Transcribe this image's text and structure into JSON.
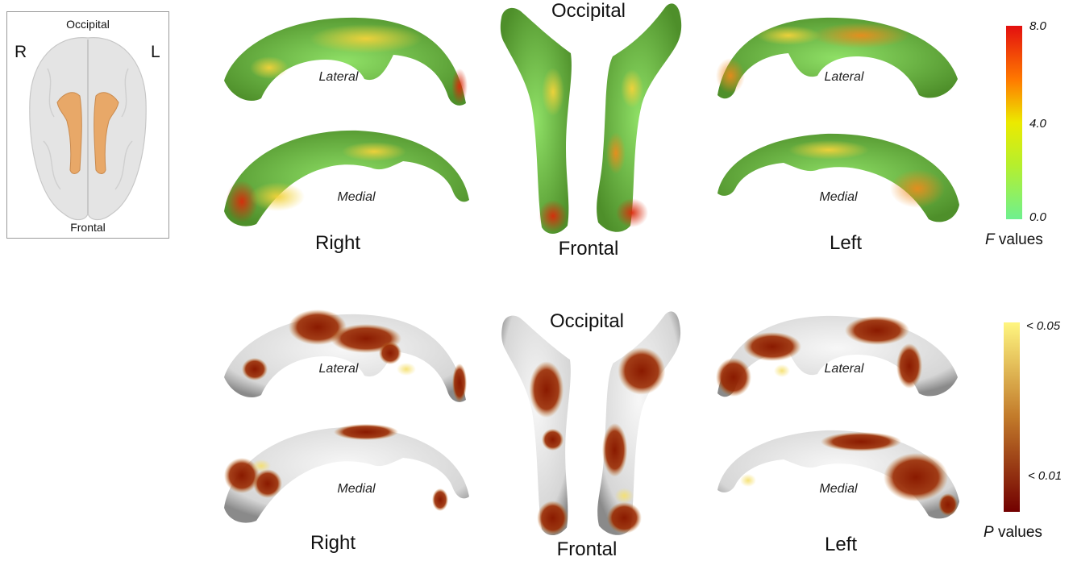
{
  "inset": {
    "top_label": "Occipital",
    "bottom_label": "Frontal",
    "right_label": "R",
    "left_label": "L"
  },
  "labels": {
    "lateral": "Lateral",
    "medial": "Medial",
    "right": "Right",
    "left": "Left",
    "occipital": "Occipital",
    "frontal": "Frontal"
  },
  "f_scale": {
    "title_var": "F",
    "title_rest": " values",
    "max": "8.0",
    "mid": "4.0",
    "min": "0.0",
    "colors": [
      "#ff1a0a",
      "#ff7a00",
      "#f4e500",
      "#c8f200",
      "#7ef08a"
    ]
  },
  "p_scale": {
    "title_var": "P",
    "title_rest": " values",
    "top": "< 0.05",
    "bottom": "< 0.01",
    "colors": [
      "#fff37a",
      "#c8862a",
      "#7a0000"
    ]
  }
}
